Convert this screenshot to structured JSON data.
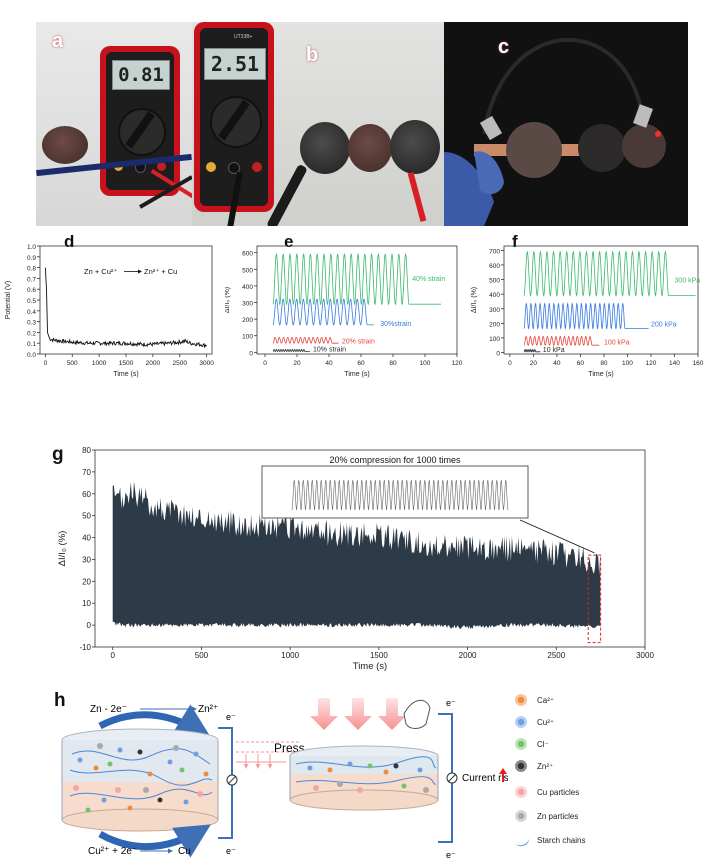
{
  "panels": {
    "a": {
      "label": "a",
      "display": "0.81"
    },
    "b": {
      "label": "b",
      "display": "2.51",
      "model": "UT33B+"
    },
    "c": {
      "label": "c"
    },
    "d": {
      "label": "d"
    },
    "e": {
      "label": "e"
    },
    "f": {
      "label": "f"
    },
    "g": {
      "label": "g",
      "inset_title": "20% compression for 1000 times"
    },
    "h": {
      "label": "h"
    }
  },
  "colors": {
    "green": "#3dba6e",
    "blue": "#3a7be0",
    "red": "#e8473f",
    "black": "#2a2a2a",
    "dark_fill": "#2d3a47"
  },
  "chart_data": [
    {
      "id": "d",
      "type": "line",
      "xlabel": "Time (s)",
      "ylabel": "Potential (V)",
      "xlim": [
        -100,
        3100
      ],
      "ylim": [
        0,
        1.0
      ],
      "xticks": [
        0,
        500,
        1000,
        1500,
        2000,
        2500,
        3000
      ],
      "yticks": [
        0.0,
        0.1,
        0.2,
        0.3,
        0.4,
        0.5,
        0.6,
        0.7,
        0.8,
        0.9,
        1.0
      ],
      "annotation": {
        "left": "Zn + Cu²⁺",
        "right": "Zn²⁺ + Cu"
      },
      "series": [
        {
          "x": [
            0,
            20,
            40,
            80,
            150,
            300,
            500,
            800,
            1000,
            1300,
            1500,
            1800,
            2000,
            2300,
            2500,
            2600,
            2700,
            3000
          ],
          "y": [
            0.8,
            0.6,
            0.2,
            0.14,
            0.13,
            0.12,
            0.11,
            0.1,
            0.1,
            0.1,
            0.1,
            0.09,
            0.09,
            0.1,
            0.11,
            0.12,
            0.1,
            0.08
          ]
        }
      ]
    },
    {
      "id": "e",
      "type": "line",
      "xlabel": "Time (s)",
      "ylabel": "ΔI/I₀ (%)",
      "xlim": [
        -5,
        120
      ],
      "ylim": [
        -10,
        640
      ],
      "xticks": [
        0,
        20,
        40,
        60,
        80,
        100,
        120
      ],
      "yticks": [
        0,
        100,
        200,
        300,
        400,
        500,
        600
      ],
      "series": [
        {
          "name": "10% strain",
          "color": "black",
          "start": 5,
          "end": 25,
          "tail": 28,
          "base": 5,
          "amp": 12,
          "cycles": 14
        },
        {
          "name": "20% strain",
          "color": "red",
          "start": 5,
          "end": 42,
          "tail": 46,
          "base": 55,
          "amp": 35,
          "cycles": 14
        },
        {
          "name": "30%strain",
          "color": "blue",
          "start": 5,
          "end": 64,
          "tail": 68,
          "base": 165,
          "amp": 155,
          "cycles": 14
        },
        {
          "name": "40% strain",
          "color": "green",
          "start": 5,
          "end": 90,
          "tail": 110,
          "base": 290,
          "amp": 300,
          "cycles": 20
        }
      ]
    },
    {
      "id": "f",
      "type": "line",
      "xlabel": "Time (s)",
      "ylabel": "ΔI/I₀ (%)",
      "xlim": [
        -5,
        160
      ],
      "ylim": [
        -10,
        730
      ],
      "xticks": [
        0,
        20,
        40,
        60,
        80,
        100,
        120,
        140,
        160
      ],
      "yticks": [
        0,
        100,
        200,
        300,
        400,
        500,
        600,
        700
      ],
      "series": [
        {
          "name": "10 kPa",
          "color": "black",
          "start": 12,
          "end": 22,
          "tail": 26,
          "base": 5,
          "amp": 15,
          "cycles": 6
        },
        {
          "name": "100 kPa",
          "color": "red",
          "start": 12,
          "end": 70,
          "tail": 76,
          "base": 50,
          "amp": 60,
          "cycles": 16
        },
        {
          "name": "200 kPa",
          "color": "blue",
          "start": 12,
          "end": 98,
          "tail": 118,
          "base": 165,
          "amp": 170,
          "cycles": 22
        },
        {
          "name": "300 kPa",
          "color": "green",
          "start": 12,
          "end": 135,
          "tail": 158,
          "base": 390,
          "amp": 300,
          "cycles": 22
        }
      ]
    },
    {
      "id": "g",
      "type": "area",
      "xlabel": "Time (s)",
      "ylabel": "ΔI/I₀ (%)",
      "xlim": [
        -100,
        3000
      ],
      "ylim": [
        -10,
        80
      ],
      "xticks": [
        0,
        500,
        1000,
        1500,
        2000,
        2500,
        3000
      ],
      "yticks": [
        -10,
        0,
        10,
        20,
        30,
        40,
        50,
        60,
        70,
        80
      ],
      "envelope": {
        "x": [
          0,
          50,
          100,
          250,
          500,
          750,
          1000,
          1250,
          1500,
          1750,
          2000,
          2250,
          2500,
          2750
        ],
        "upper": [
          60,
          58,
          62,
          55,
          50,
          47,
          45,
          43,
          42,
          38,
          37,
          36,
          34,
          30
        ],
        "lower": [
          1,
          0,
          0,
          0,
          0,
          0,
          0,
          0,
          0,
          0,
          -1,
          0,
          0,
          -1
        ]
      }
    }
  ],
  "mechanism": {
    "top_reaction": {
      "left": "Zn - 2e⁻",
      "right": "Zn²⁺"
    },
    "bottom_reaction": {
      "left": "Cu²⁺ + 2e⁻",
      "right": "Cu"
    },
    "electron_label": "e⁻",
    "press_label": "Press",
    "current_label": "Current rise",
    "legend": [
      {
        "name": "Ca²⁺",
        "color": "#f08a3c",
        "ring": "#f5c49a"
      },
      {
        "name": "Cu²⁺",
        "color": "#6f9ee0",
        "ring": "#b7d0f2"
      },
      {
        "name": "Cl⁻",
        "color": "#74c36a",
        "ring": "#bfe3b8"
      },
      {
        "name": "Zn²⁺",
        "color": "#333333",
        "ring": "#8a8a8a"
      },
      {
        "name": "Cu particles",
        "color": "#f4a5a5",
        "ring": "#fad3d3"
      },
      {
        "name": "Zn particles",
        "color": "#a9a9a9",
        "ring": "#d6d6d6"
      },
      {
        "name": "Starch chains",
        "color": "#4a88d8",
        "ring": ""
      }
    ]
  }
}
